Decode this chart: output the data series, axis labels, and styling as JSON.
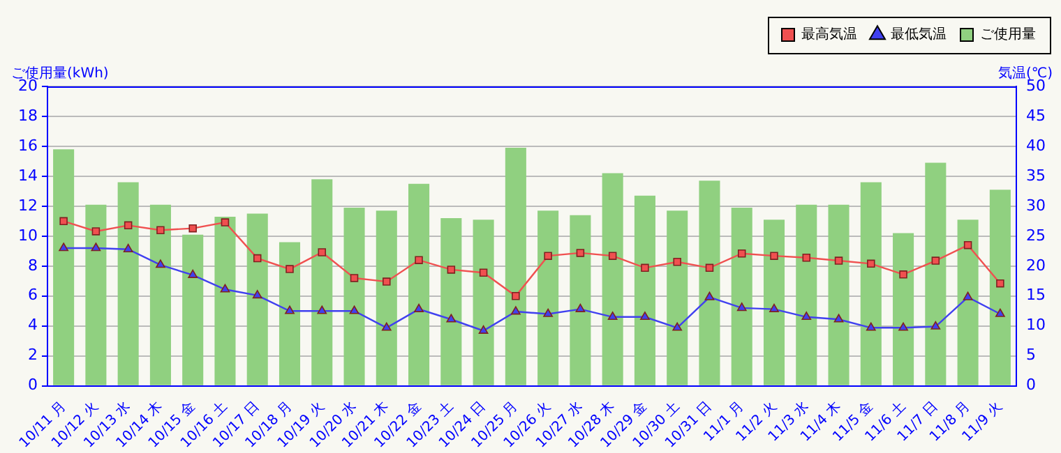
{
  "chart_data": {
    "type": "bar",
    "categories": [
      "10/11 月",
      "10/12 火",
      "10/13 水",
      "10/14 木",
      "10/15 金",
      "10/16 土",
      "10/17 日",
      "10/18 月",
      "10/19 火",
      "10/20 水",
      "10/21 木",
      "10/22 金",
      "10/23 土",
      "10/24 日",
      "10/25 月",
      "10/26 火",
      "10/27 水",
      "10/28 木",
      "10/29 金",
      "10/30 土",
      "10/31 日",
      "11/1 月",
      "11/2 火",
      "11/3 水",
      "11/4 木",
      "11/5 金",
      "11/6 土",
      "11/7 日",
      "11/8 月",
      "11/9 火"
    ],
    "series": [
      {
        "name": "最高気温",
        "type": "line",
        "axis": "y2",
        "marker": "square",
        "color": "#f05050",
        "values": [
          27.5,
          25.8,
          26.8,
          26.0,
          26.3,
          27.3,
          21.3,
          19.5,
          22.3,
          18.0,
          17.4,
          21.0,
          19.4,
          18.9,
          15.0,
          21.7,
          22.2,
          21.7,
          19.7,
          20.7,
          19.7,
          22.1,
          21.7,
          21.4,
          20.9,
          20.4,
          18.6,
          20.9,
          23.5,
          17.1
        ]
      },
      {
        "name": "最低気温",
        "type": "line",
        "axis": "y2",
        "marker": "triangle",
        "color": "#4040f0",
        "values": [
          23.0,
          23.0,
          22.8,
          20.2,
          18.5,
          16.1,
          15.1,
          12.5,
          12.5,
          12.5,
          9.7,
          12.8,
          11.1,
          9.2,
          12.4,
          12.0,
          12.8,
          11.5,
          11.5,
          9.7,
          14.8,
          13.0,
          12.8,
          11.5,
          11.1,
          9.7,
          9.7,
          9.9,
          14.8,
          12.0
        ]
      },
      {
        "name": "ご使用量",
        "axis": "y",
        "color": "#90d080",
        "values": [
          15.8,
          12.1,
          13.6,
          12.1,
          10.1,
          11.3,
          11.5,
          9.6,
          13.8,
          11.9,
          11.7,
          13.5,
          11.2,
          11.1,
          15.9,
          11.7,
          11.4,
          14.2,
          12.7,
          11.7,
          13.7,
          11.9,
          11.1,
          12.1,
          12.1,
          13.6,
          10.2,
          14.9,
          11.1,
          13.1
        ]
      }
    ],
    "ylabel": "ご使用量(kWh)",
    "y2label": "気温(℃)",
    "ylim": [
      0,
      20
    ],
    "yticks": [
      0,
      2,
      4,
      6,
      8,
      10,
      12,
      14,
      16,
      18,
      20
    ],
    "y2lim": [
      0,
      50
    ],
    "y2ticks": [
      0,
      5,
      10,
      15,
      20,
      25,
      30,
      35,
      40,
      45,
      50
    ],
    "grid": "y",
    "legend": "top right"
  }
}
